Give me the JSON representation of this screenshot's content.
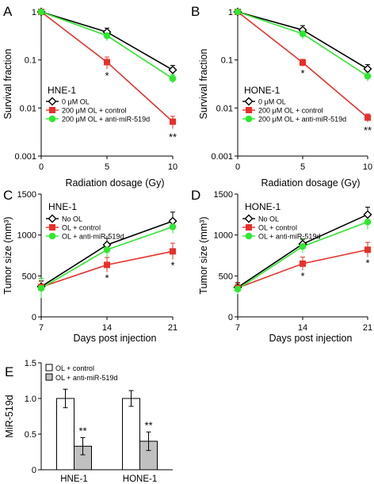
{
  "chart_data": [
    {
      "panel": "A",
      "type": "line",
      "inset_label": "HNE-1",
      "xlabel": "Radiation dosage (Gy)",
      "ylabel": "Survival fraction",
      "yscale": "log",
      "x": [
        0,
        5,
        10
      ],
      "xticks": [
        "0",
        "5",
        "10"
      ],
      "xlim": [
        0,
        10
      ],
      "ylim": [
        0.001,
        1
      ],
      "yticks": [
        "0.001",
        "0.01",
        "0.1",
        "1"
      ],
      "legend_position": "bottom-left",
      "series": [
        {
          "name": "0 μM OL",
          "color": "#000000",
          "marker": "diamond-open",
          "values": [
            1,
            0.38,
            0.062
          ],
          "errors": [
            0,
            0.08,
            0.015
          ]
        },
        {
          "name": "200 μM OL + control",
          "color": "#e8302a",
          "marker": "square",
          "values": [
            1,
            0.09,
            0.0052
          ],
          "errors": [
            0,
            0.025,
            0.0015
          ]
        },
        {
          "name": "200 μM OL + anti-miR-519d",
          "color": "#2ee82e",
          "marker": "circle",
          "values": [
            1,
            0.32,
            0.041
          ],
          "errors": [
            0,
            0.07,
            0.008
          ]
        }
      ],
      "significance": [
        {
          "x": 5,
          "label": "*"
        },
        {
          "x": 10,
          "label": "**"
        }
      ]
    },
    {
      "panel": "B",
      "type": "line",
      "inset_label": "HONE-1",
      "xlabel": "Radiation dosage (Gy)",
      "ylabel": "Survival fraction",
      "yscale": "log",
      "x": [
        0,
        5,
        10
      ],
      "xticks": [
        "0",
        "5",
        "10"
      ],
      "xlim": [
        0,
        10
      ],
      "ylim": [
        0.001,
        1
      ],
      "yticks": [
        "0.001",
        "0.01",
        "0.1",
        "1"
      ],
      "legend_position": "bottom-left",
      "series": [
        {
          "name": "0 μM OL",
          "color": "#000000",
          "marker": "diamond-open",
          "values": [
            1,
            0.42,
            0.065
          ],
          "errors": [
            0,
            0.1,
            0.015
          ]
        },
        {
          "name": "200 μM OL + control",
          "color": "#e8302a",
          "marker": "square",
          "values": [
            1,
            0.088,
            0.0063
          ],
          "errors": [
            0,
            0.015,
            0.0012
          ]
        },
        {
          "name": "200 μM OL + anti-miR-519d",
          "color": "#2ee82e",
          "marker": "circle",
          "values": [
            1,
            0.35,
            0.046
          ],
          "errors": [
            0,
            0.08,
            0.01
          ]
        }
      ],
      "significance": [
        {
          "x": 5,
          "label": "*"
        },
        {
          "x": 10,
          "label": "**"
        }
      ]
    },
    {
      "panel": "C",
      "type": "line",
      "inset_label": "HNE-1",
      "xlabel": "Days post injection",
      "ylabel": "Tumor size (mm³)",
      "x": [
        7,
        14,
        21
      ],
      "xticks": [
        "7",
        "14",
        "21"
      ],
      "xlim": [
        7,
        21
      ],
      "ylim": [
        0,
        1500
      ],
      "yticks": [
        "0",
        "500",
        "1000",
        "1500"
      ],
      "legend_position": "top-left",
      "series": [
        {
          "name": "No OL",
          "color": "#000000",
          "marker": "diamond-open",
          "values": [
            370,
            880,
            1170
          ],
          "errors": [
            70,
            80,
            110
          ]
        },
        {
          "name": "OL + control",
          "color": "#e8302a",
          "marker": "square",
          "values": [
            365,
            635,
            800
          ],
          "errors": [
            70,
            90,
            100
          ]
        },
        {
          "name": "OL + anti-miR-519d",
          "color": "#2ee82e",
          "marker": "circle",
          "values": [
            350,
            820,
            1100
          ],
          "errors": [
            120,
            90,
            80
          ]
        }
      ],
      "significance": [
        {
          "x": 14,
          "label": "*"
        },
        {
          "x": 21,
          "label": "*"
        }
      ]
    },
    {
      "panel": "D",
      "type": "line",
      "inset_label": "HONE-1",
      "xlabel": "Days post injection",
      "ylabel": "Tumor size (mm³)",
      "x": [
        7,
        14,
        21
      ],
      "xticks": [
        "7",
        "14",
        "21"
      ],
      "xlim": [
        7,
        21
      ],
      "ylim": [
        0,
        1500
      ],
      "yticks": [
        "0",
        "500",
        "1000",
        "1500"
      ],
      "legend_position": "top-left",
      "series": [
        {
          "name": "No OL",
          "color": "#000000",
          "marker": "diamond-open",
          "values": [
            360,
            890,
            1250
          ],
          "errors": [
            60,
            60,
            90
          ]
        },
        {
          "name": "OL + control",
          "color": "#e8302a",
          "marker": "square",
          "values": [
            355,
            650,
            820
          ],
          "errors": [
            60,
            80,
            90
          ]
        },
        {
          "name": "OL + anti-miR-519d",
          "color": "#2ee82e",
          "marker": "circle",
          "values": [
            340,
            860,
            1160
          ],
          "errors": [
            60,
            80,
            90
          ]
        }
      ],
      "significance": [
        {
          "x": 14,
          "label": "*"
        },
        {
          "x": 21,
          "label": "*"
        }
      ]
    },
    {
      "panel": "E",
      "type": "bar",
      "ylabel": "MiR-519d",
      "categories": [
        "HNE-1",
        "HONE-1"
      ],
      "ylim": [
        0,
        1.5
      ],
      "yticks": [
        "0",
        "0.5",
        "1.0",
        "1.5"
      ],
      "legend_position": "top-left",
      "series": [
        {
          "name": "OL + control",
          "color": "#ffffff",
          "values": [
            1.0,
            1.0
          ],
          "errors": [
            0.13,
            0.11
          ]
        },
        {
          "name": "OL + anti-miR-519d",
          "color": "#c0c0c0",
          "values": [
            0.33,
            0.4
          ],
          "errors": [
            0.12,
            0.13
          ]
        }
      ],
      "significance": [
        {
          "category": "HNE-1",
          "label": "**"
        },
        {
          "category": "HONE-1",
          "label": "**"
        }
      ]
    }
  ]
}
